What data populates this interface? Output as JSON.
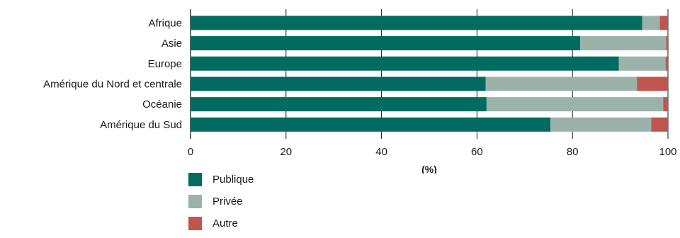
{
  "chart_data": {
    "type": "bar",
    "orientation": "horizontal",
    "stacked": true,
    "title": "",
    "xlabel": "(%)",
    "ylabel": "",
    "xlim": [
      0,
      100
    ],
    "xticks": [
      "0",
      "20",
      "40",
      "60",
      "80",
      "100"
    ],
    "grid": "vertical",
    "legend_position": "bottom-left",
    "categories": [
      "Afrique",
      "Asie",
      "Europe",
      "Amérique du Nord et centrale",
      "Océanie",
      "Amérique du Sud"
    ],
    "series": [
      {
        "name": "Publique",
        "color": "#006b5e",
        "values": [
          94.6,
          81.6,
          89.7,
          61.8,
          62.0,
          75.4
        ]
      },
      {
        "name": "Privée",
        "color": "#9bb2aa",
        "values": [
          3.7,
          18.0,
          9.8,
          31.7,
          37.0,
          21.1
        ]
      },
      {
        "name": "Autre",
        "color": "#c0554f",
        "values": [
          1.7,
          0.4,
          0.5,
          6.5,
          1.0,
          3.5
        ]
      }
    ]
  }
}
